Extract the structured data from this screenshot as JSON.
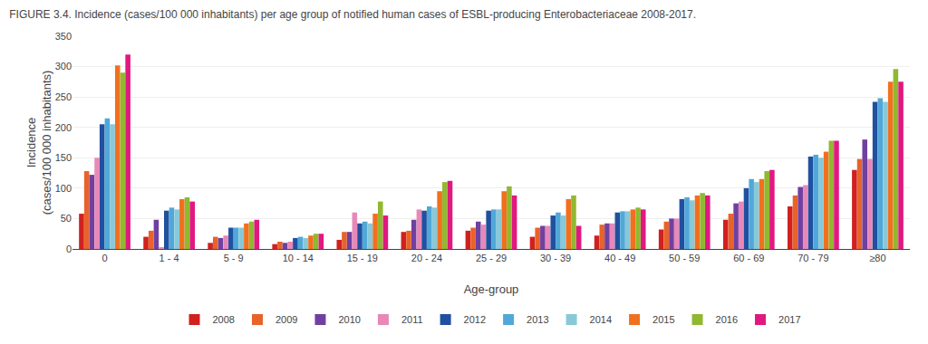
{
  "chart_data": {
    "type": "bar",
    "title": "FIGURE 3.4. Incidence (cases/100 000 inhabitants) per age group of notified human cases of ESBL-producing Enterobacteriaceae 2008-2017.",
    "xlabel": "Age-group",
    "ylabel": "Incidence\n(cases/100 000 inhabitants)",
    "categories": [
      "0",
      "1 - 4",
      "5 - 9",
      "10 - 14",
      "15 - 19",
      "20 - 24",
      "25 - 29",
      "30 - 39",
      "40 - 49",
      "50 - 59",
      "60 - 69",
      "70 - 79",
      "≥80"
    ],
    "series": [
      {
        "name": "2008",
        "color": "#d02020",
        "values": [
          58,
          20,
          10,
          8,
          15,
          28,
          30,
          20,
          22,
          32,
          48,
          70,
          130
        ]
      },
      {
        "name": "2009",
        "color": "#e8622a",
        "values": [
          128,
          30,
          20,
          12,
          28,
          30,
          35,
          35,
          40,
          45,
          58,
          88,
          148
        ]
      },
      {
        "name": "2010",
        "color": "#7040a0",
        "values": [
          122,
          48,
          18,
          10,
          28,
          48,
          45,
          38,
          42,
          50,
          75,
          102,
          180
        ]
      },
      {
        "name": "2011",
        "color": "#e888b8",
        "values": [
          150,
          3,
          22,
          12,
          60,
          65,
          40,
          38,
          42,
          50,
          78,
          105,
          148
        ]
      },
      {
        "name": "2012",
        "color": "#2050a0",
        "values": [
          205,
          63,
          35,
          18,
          42,
          63,
          63,
          55,
          60,
          82,
          100,
          152,
          242
        ]
      },
      {
        "name": "2013",
        "color": "#50a8d8",
        "values": [
          215,
          68,
          35,
          20,
          45,
          70,
          65,
          60,
          62,
          85,
          115,
          155,
          248
        ]
      },
      {
        "name": "2014",
        "color": "#88c8d8",
        "values": [
          205,
          65,
          35,
          18,
          42,
          68,
          65,
          55,
          62,
          80,
          110,
          150,
          242
        ]
      },
      {
        "name": "2015",
        "color": "#f07020",
        "values": [
          302,
          82,
          42,
          22,
          58,
          95,
          95,
          82,
          65,
          88,
          115,
          160,
          275
        ]
      },
      {
        "name": "2016",
        "color": "#90b830",
        "values": [
          290,
          85,
          45,
          25,
          78,
          110,
          103,
          88,
          68,
          92,
          128,
          178,
          296
        ]
      },
      {
        "name": "2017",
        "color": "#e01880",
        "values": [
          320,
          78,
          48,
          25,
          55,
          112,
          88,
          38,
          65,
          88,
          130,
          178,
          275
        ]
      }
    ],
    "ylim": [
      0,
      350
    ],
    "yticks": [
      0,
      50,
      100,
      150,
      200,
      250,
      300,
      350
    ],
    "grid": true,
    "legend": "bottom"
  }
}
